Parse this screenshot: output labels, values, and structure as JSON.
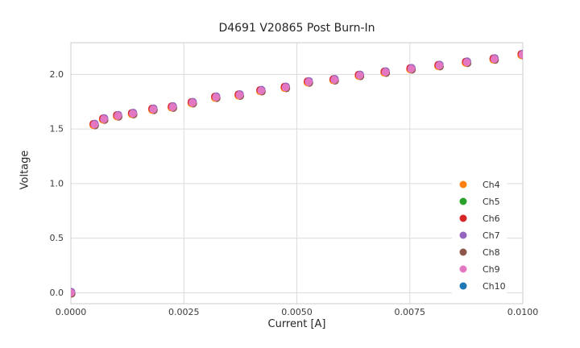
{
  "chart_data": {
    "type": "scatter",
    "title": "D4691 V20865 Post Burn-In",
    "xlabel": "Current [A]",
    "ylabel": "Voltage",
    "xlim": [
      0,
      0.01
    ],
    "ylim": [
      -0.1,
      2.29
    ],
    "grid": true,
    "legend_position": "lower right",
    "xticks": {
      "values": [
        0,
        0.0025,
        0.005,
        0.0075,
        0.01
      ],
      "labels": [
        "0.0000",
        "0.0025",
        "0.0050",
        "0.0075",
        "0.0100"
      ]
    },
    "yticks": {
      "values": [
        0,
        0.5,
        1.0,
        1.5,
        2.0
      ],
      "labels": [
        "0.0",
        "0.5",
        "1.0",
        "1.5",
        "2.0"
      ]
    },
    "x": [
      0.0,
      0.00052,
      0.00073,
      0.00104,
      0.00137,
      0.00182,
      0.00225,
      0.00269,
      0.00321,
      0.00373,
      0.00421,
      0.00475,
      0.00526,
      0.00583,
      0.00639,
      0.00696,
      0.00753,
      0.00815,
      0.00876,
      0.00937,
      0.00999
    ],
    "series": [
      {
        "name": "Ch4",
        "color": "#ff7f0e",
        "values": [
          0.0,
          1.54,
          1.59,
          1.62,
          1.64,
          1.68,
          1.7,
          1.74,
          1.79,
          1.81,
          1.85,
          1.88,
          1.93,
          1.95,
          1.99,
          2.02,
          2.05,
          2.08,
          2.11,
          2.14,
          2.18
        ]
      },
      {
        "name": "Ch5",
        "color": "#2ca02c",
        "values": [
          0.0,
          1.54,
          1.59,
          1.62,
          1.64,
          1.68,
          1.7,
          1.74,
          1.79,
          1.81,
          1.85,
          1.88,
          1.93,
          1.95,
          1.99,
          2.02,
          2.05,
          2.08,
          2.11,
          2.14,
          2.18
        ]
      },
      {
        "name": "Ch6",
        "color": "#d62728",
        "values": [
          0.0,
          1.54,
          1.59,
          1.62,
          1.64,
          1.68,
          1.7,
          1.74,
          1.79,
          1.81,
          1.85,
          1.88,
          1.93,
          1.95,
          1.99,
          2.02,
          2.05,
          2.08,
          2.11,
          2.14,
          2.18
        ]
      },
      {
        "name": "Ch7",
        "color": "#9467bd",
        "values": [
          0.0,
          1.54,
          1.59,
          1.62,
          1.64,
          1.68,
          1.7,
          1.74,
          1.79,
          1.81,
          1.85,
          1.88,
          1.93,
          1.95,
          1.99,
          2.02,
          2.05,
          2.08,
          2.11,
          2.14,
          2.18
        ]
      },
      {
        "name": "Ch8",
        "color": "#8c564b",
        "values": [
          0.0,
          1.54,
          1.59,
          1.62,
          1.64,
          1.68,
          1.7,
          1.74,
          1.79,
          1.81,
          1.85,
          1.88,
          1.93,
          1.95,
          1.99,
          2.02,
          2.05,
          2.08,
          2.11,
          2.14,
          2.18
        ]
      },
      {
        "name": "Ch9",
        "color": "#e377c2",
        "values": [
          0.0,
          1.54,
          1.59,
          1.62,
          1.64,
          1.68,
          1.7,
          1.74,
          1.79,
          1.81,
          1.85,
          1.88,
          1.93,
          1.95,
          1.99,
          2.02,
          2.05,
          2.08,
          2.11,
          2.14,
          2.18
        ]
      },
      {
        "name": "Ch10",
        "color": "#1f77b4",
        "values": [
          0.0,
          1.54,
          1.59,
          1.62,
          1.64,
          1.68,
          1.7,
          1.74,
          1.79,
          1.81,
          1.85,
          1.88,
          1.93,
          1.95,
          1.99,
          2.02,
          2.05,
          2.08,
          2.11,
          2.14,
          2.18
        ]
      }
    ]
  },
  "style": {
    "grid_color": "#dcdcdc",
    "spine_color": "#cccccc",
    "legend_bg": "#ffffff",
    "marker_radius": 4.8
  }
}
